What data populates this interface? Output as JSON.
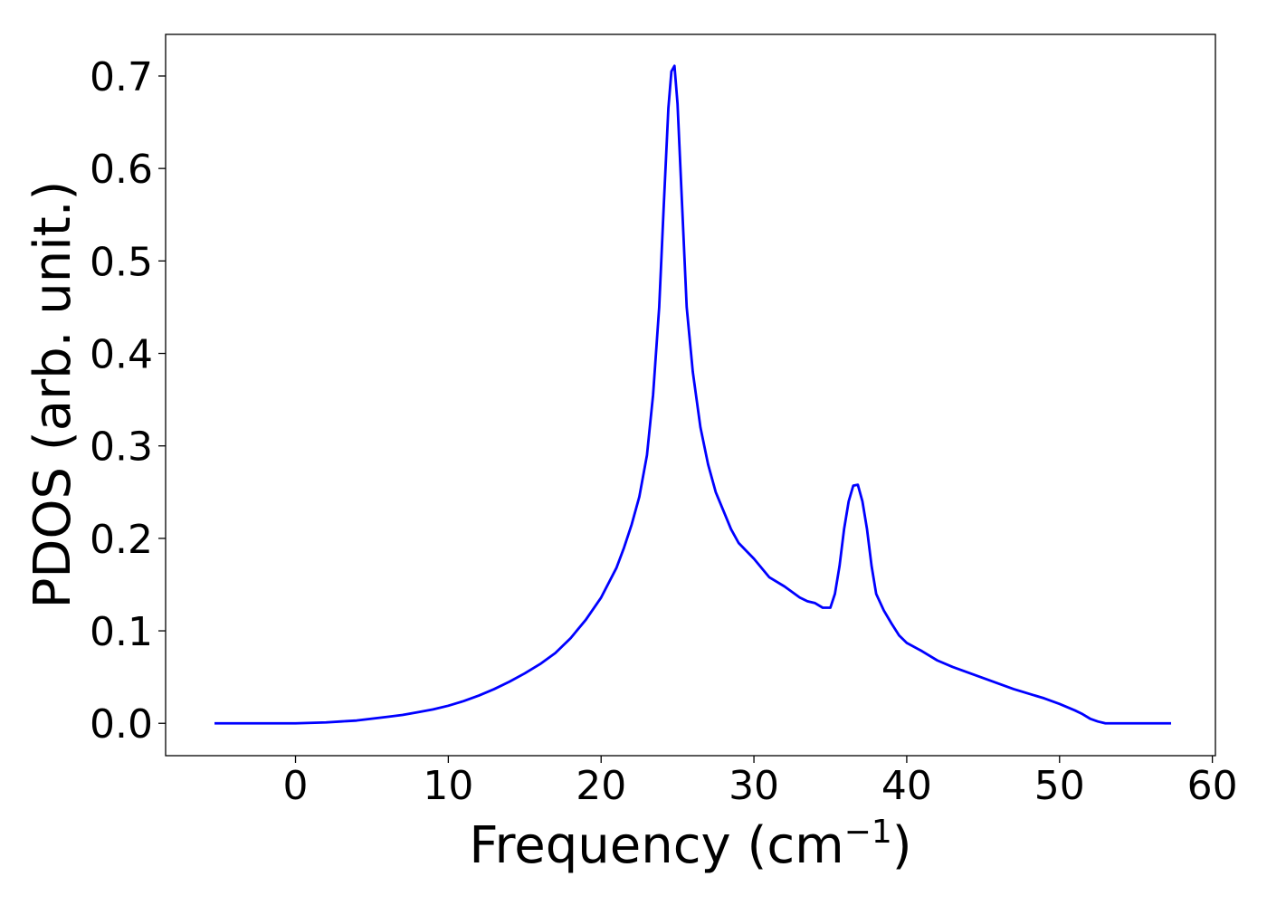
{
  "chart_data": {
    "type": "line",
    "xlabel": "Frequency (cm",
    "xlabel_sup": "−1",
    "xlabel_close": ")",
    "ylabel": "PDOS (arb. unit.)",
    "xlim": [
      -8.5,
      60.2
    ],
    "ylim": [
      -0.035,
      0.745
    ],
    "xticks": [
      0,
      10,
      20,
      30,
      40,
      50,
      60
    ],
    "yticks": [
      0.0,
      0.1,
      0.2,
      0.3,
      0.4,
      0.5,
      0.6,
      0.7
    ],
    "grid": false,
    "series": [
      {
        "color": "#0000ff",
        "points": [
          [
            -5.3,
            0.0
          ],
          [
            -3,
            0.0
          ],
          [
            -1,
            0.0
          ],
          [
            0,
            0.0
          ],
          [
            1,
            0.0005
          ],
          [
            2,
            0.001
          ],
          [
            3,
            0.002
          ],
          [
            4,
            0.003
          ],
          [
            5,
            0.005
          ],
          [
            6,
            0.007
          ],
          [
            7,
            0.009
          ],
          [
            8,
            0.012
          ],
          [
            9,
            0.015
          ],
          [
            10,
            0.019
          ],
          [
            11,
            0.024
          ],
          [
            12,
            0.03
          ],
          [
            13,
            0.037
          ],
          [
            14,
            0.045
          ],
          [
            15,
            0.054
          ],
          [
            16,
            0.064
          ],
          [
            17,
            0.076
          ],
          [
            18,
            0.092
          ],
          [
            19,
            0.112
          ],
          [
            20,
            0.136
          ],
          [
            21,
            0.168
          ],
          [
            21.5,
            0.19
          ],
          [
            22,
            0.215
          ],
          [
            22.5,
            0.245
          ],
          [
            23,
            0.29
          ],
          [
            23.4,
            0.355
          ],
          [
            23.8,
            0.45
          ],
          [
            24.1,
            0.56
          ],
          [
            24.4,
            0.665
          ],
          [
            24.6,
            0.705
          ],
          [
            24.8,
            0.711
          ],
          [
            25.0,
            0.67
          ],
          [
            25.3,
            0.56
          ],
          [
            25.6,
            0.45
          ],
          [
            26,
            0.38
          ],
          [
            26.5,
            0.32
          ],
          [
            27,
            0.28
          ],
          [
            27.5,
            0.25
          ],
          [
            28,
            0.23
          ],
          [
            28.5,
            0.21
          ],
          [
            29,
            0.195
          ],
          [
            30,
            0.178
          ],
          [
            31,
            0.158
          ],
          [
            32,
            0.148
          ],
          [
            33,
            0.136
          ],
          [
            33.5,
            0.132
          ],
          [
            34,
            0.13
          ],
          [
            34.5,
            0.125
          ],
          [
            35,
            0.125
          ],
          [
            35.3,
            0.14
          ],
          [
            35.6,
            0.17
          ],
          [
            35.9,
            0.21
          ],
          [
            36.2,
            0.24
          ],
          [
            36.5,
            0.257
          ],
          [
            36.8,
            0.258
          ],
          [
            37.1,
            0.24
          ],
          [
            37.4,
            0.21
          ],
          [
            37.7,
            0.17
          ],
          [
            38,
            0.14
          ],
          [
            38.5,
            0.122
          ],
          [
            39,
            0.108
          ],
          [
            39.5,
            0.095
          ],
          [
            40,
            0.087
          ],
          [
            41,
            0.078
          ],
          [
            42,
            0.068
          ],
          [
            43,
            0.061
          ],
          [
            44,
            0.055
          ],
          [
            45,
            0.049
          ],
          [
            46,
            0.043
          ],
          [
            47,
            0.037
          ],
          [
            48,
            0.032
          ],
          [
            49,
            0.027
          ],
          [
            50,
            0.021
          ],
          [
            51,
            0.014
          ],
          [
            51.5,
            0.01
          ],
          [
            52,
            0.005
          ],
          [
            52.5,
            0.002
          ],
          [
            53,
            0.0
          ],
          [
            55,
            0.0
          ],
          [
            57.3,
            0.0
          ]
        ]
      }
    ]
  }
}
